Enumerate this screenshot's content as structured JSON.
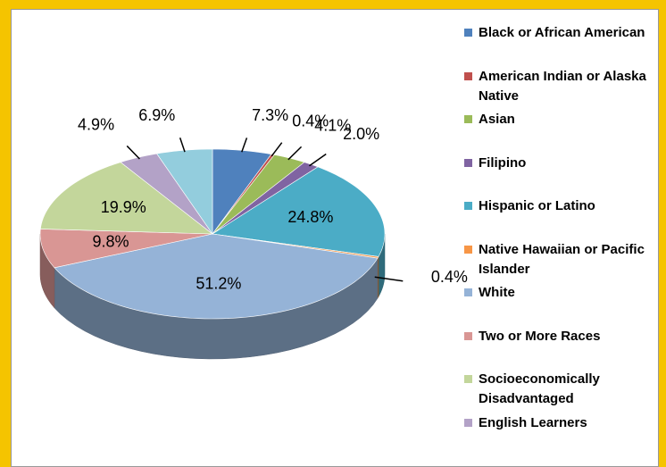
{
  "chart_data": {
    "type": "pie3d",
    "categories": [
      "Black or African American",
      "American Indian or Alaska Native",
      "Asian",
      "Filipino",
      "Hispanic or Latino",
      "Native Hawaiian or Pacific Islander",
      "White",
      "Two or More Races",
      "Socioeconomically Disadvantaged",
      "English Learners",
      null
    ],
    "values": [
      7.3,
      0.4,
      4.1,
      2.0,
      24.8,
      0.4,
      51.2,
      9.8,
      19.9,
      4.9,
      6.9
    ],
    "value_labels": [
      "7.3%",
      "0.4%",
      "4.1%",
      "2.0%",
      "24.8%",
      "0.4%",
      "51.2%",
      "9.8%",
      "19.9%",
      "4.9%",
      "6.9%"
    ],
    "colors": [
      "#4f81bd",
      "#c0504d",
      "#9bbb59",
      "#8064a2",
      "#4bacc6",
      "#f79646",
      "#95b3d7",
      "#d99694",
      "#c3d69b",
      "#b3a2c7",
      "#93cddd"
    ],
    "legend": "right"
  }
}
